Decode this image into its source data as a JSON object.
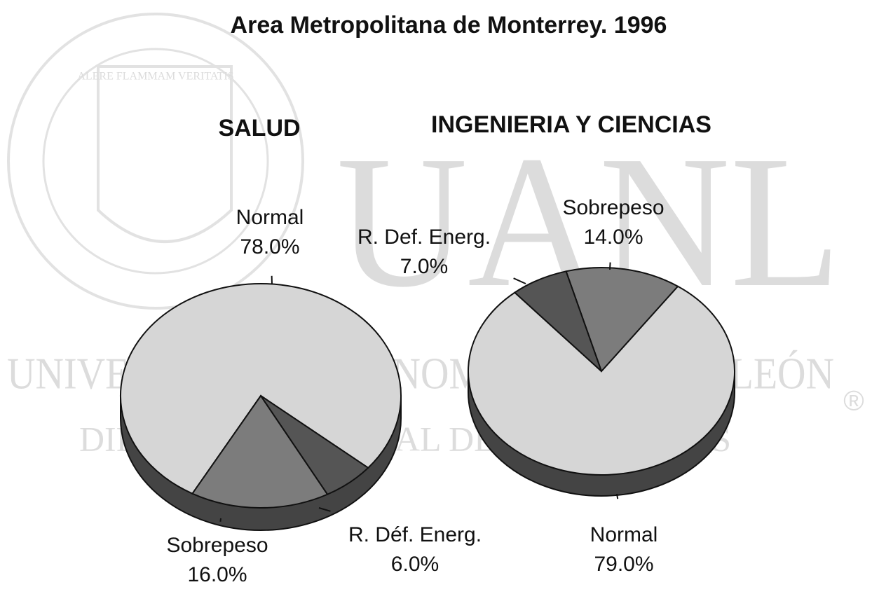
{
  "title": "Area Metropolitana de Monterrey. 1996",
  "watermark": {
    "logo": "UANL",
    "university": "UNIVERSIDAD AUTÓNOMA DE NUEVO LEÓN",
    "division": "DIRECCIÓN GENERAL DE BIBLIOTECAS",
    "motto": "ALERE FLAMMAM VERITATIS",
    "mark": "®"
  },
  "chart_data": [
    {
      "type": "pie",
      "title": "SALUD",
      "categories": [
        "Normal",
        "Sobrepeso",
        "R. Déf. Energ."
      ],
      "values": [
        78,
        16,
        6
      ],
      "value_labels": [
        "78.0%",
        "16.0%",
        "6.0%"
      ],
      "colors": [
        "#d6d6d6",
        "#7c7c7c",
        "#555555"
      ]
    },
    {
      "type": "pie",
      "title": "INGENIERIA Y CIENCIAS",
      "categories": [
        "Normal",
        "Sobrepeso",
        "R. Def. Energ."
      ],
      "values": [
        79,
        14,
        7
      ],
      "value_labels": [
        "79.0%",
        "14.0%",
        "7.0%"
      ],
      "colors": [
        "#d6d6d6",
        "#7c7c7c",
        "#555555"
      ]
    }
  ]
}
